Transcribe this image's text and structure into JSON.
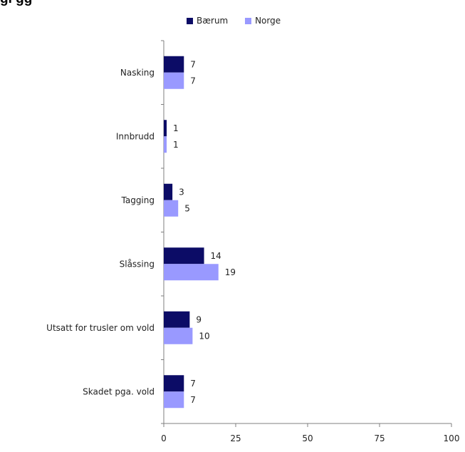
{
  "header": {
    "title": "gl                                                    gg"
  },
  "colors": {
    "baerum": "#0c0c66",
    "norge": "#9999ff",
    "axis": "#7f7f7f"
  },
  "chart_data": {
    "type": "bar",
    "orientation": "horizontal",
    "categories": [
      "Nasking",
      "Innbrudd",
      "Tagging",
      "Slåssing",
      "Utsatt for trusler om vold",
      "Skadet pga. vold"
    ],
    "series": [
      {
        "name": "Bærum",
        "values": [
          7,
          1,
          3,
          14,
          9,
          7
        ]
      },
      {
        "name": "Norge",
        "values": [
          7,
          1,
          5,
          19,
          10,
          7
        ]
      }
    ],
    "xlim": [
      0,
      100
    ],
    "xticks": [
      0,
      25,
      50,
      75,
      100
    ],
    "grid": false,
    "legend_position": "top"
  }
}
